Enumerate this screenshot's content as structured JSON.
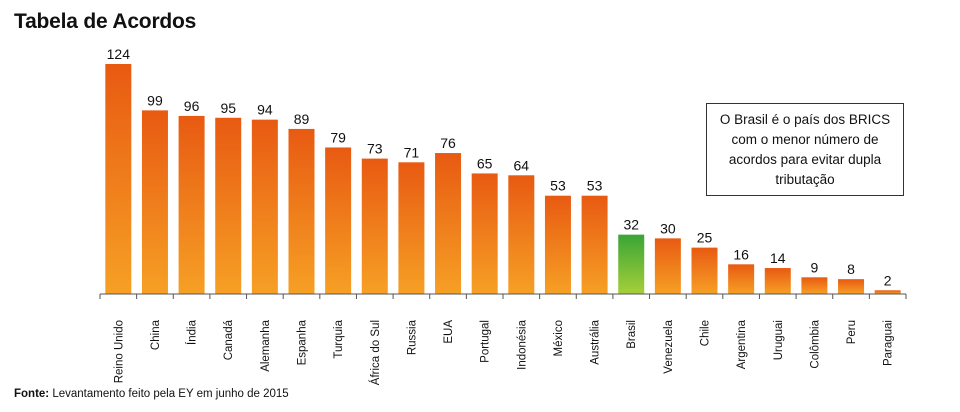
{
  "header": {
    "title": "Tabela de Acordos"
  },
  "callout": {
    "text": "O Brasil é o país dos BRICS com o menor número de acordos para evitar dupla tributação"
  },
  "source": {
    "label": "Fonte:",
    "text": "Levantamento feito pela EY em junho de 2015"
  },
  "colors": {
    "bar_top": "#e85a12",
    "bar_bottom": "#f6a025",
    "highlight_top": "#3aa536",
    "highlight_bottom": "#a6cf3a",
    "axis": "#555555"
  },
  "chart_data": {
    "type": "bar",
    "categories": [
      "Reino Unido",
      "China",
      "Índia",
      "Canadá",
      "Alemanha",
      "Espanha",
      "Turquia",
      "África do Sul",
      "Russia",
      "EUA",
      "Portugal",
      "Indonésia",
      "México",
      "Austrália",
      "Brasil",
      "Venezuela",
      "Chile",
      "Argentina",
      "Uruguai",
      "Colômbia",
      "Peru",
      "Paraguai"
    ],
    "values": [
      124,
      99,
      96,
      95,
      94,
      89,
      79,
      73,
      71,
      76,
      65,
      64,
      53,
      53,
      32,
      30,
      25,
      16,
      14,
      9,
      8,
      2
    ],
    "highlight": "Brasil",
    "ylim": [
      0,
      124
    ],
    "grid": false,
    "xlabel": "",
    "ylabel": ""
  }
}
